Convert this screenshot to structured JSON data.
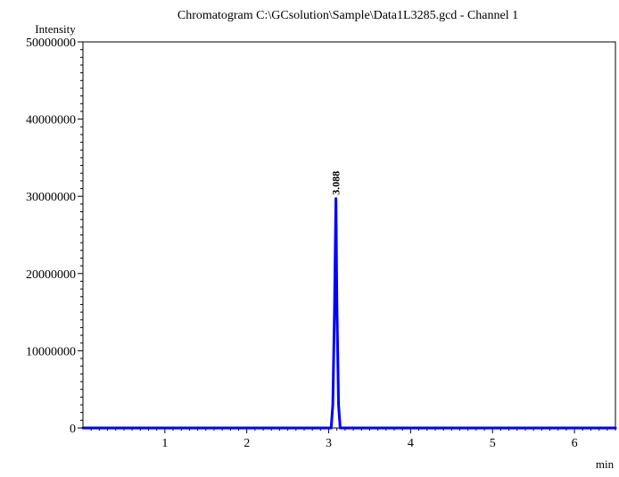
{
  "chart_data": {
    "type": "line",
    "title": "Chromatogram C:\\GCsolution\\Sample\\Data1L3285.gcd - Channel 1",
    "xlabel": "min",
    "ylabel": "Intensity",
    "xlim": [
      0,
      6.5
    ],
    "ylim": [
      0,
      50000000
    ],
    "x_ticks": [
      1,
      2,
      3,
      4,
      5,
      6
    ],
    "x_tick_labels": [
      "1",
      "2",
      "3",
      "4",
      "5",
      "6"
    ],
    "y_ticks": [
      0,
      10000000,
      20000000,
      30000000,
      40000000,
      50000000
    ],
    "y_tick_labels": [
      "0",
      "10000000",
      "20000000",
      "30000000",
      "40000000",
      "50000000"
    ],
    "grid": false,
    "line_color": "#0000ff",
    "series": [
      {
        "x": [
          0.0,
          1.0,
          2.0,
          2.9,
          3.03,
          3.05,
          3.07,
          3.088,
          3.1,
          3.12,
          3.14,
          3.2,
          4.0,
          5.0,
          6.0,
          6.5
        ],
        "values": [
          0,
          0,
          0,
          0,
          0,
          3000000,
          15000000,
          29700000,
          16000000,
          3000000,
          0,
          0,
          0,
          0,
          0,
          0
        ]
      }
    ],
    "annotations": [
      {
        "x": 3.088,
        "y": 29700000,
        "text": "3.088"
      }
    ]
  }
}
